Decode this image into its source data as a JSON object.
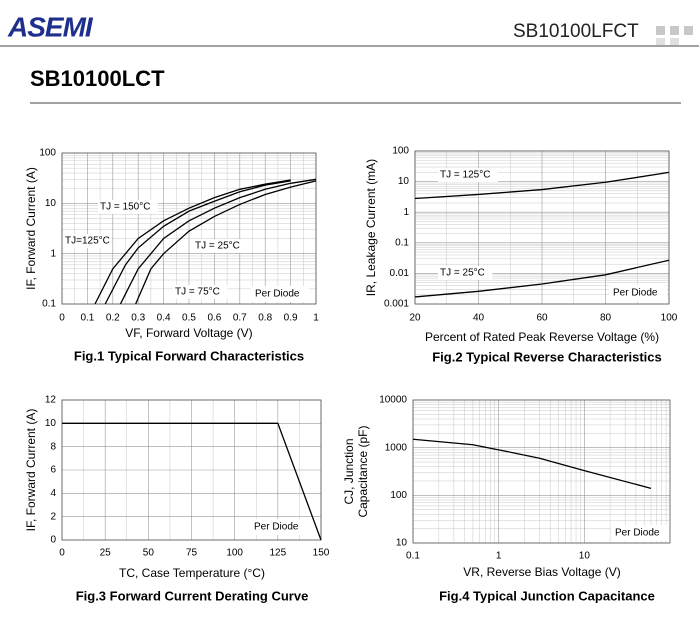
{
  "header": {
    "logo": "ASEMI",
    "part_code": "SB10100LFCT",
    "title": "SB10100LCT"
  },
  "chart_data": [
    {
      "type": "line",
      "caption": "Fig.1 Typical Forward Characteristics",
      "xlabel": "VF, Forward Voltage (V)",
      "ylabel": "IF, Forward Current (A)",
      "xlim": [
        0,
        1
      ],
      "xticks": [
        0,
        0.1,
        0.2,
        0.3,
        0.4,
        0.5,
        0.6,
        0.7,
        0.8,
        0.9,
        1
      ],
      "ylim": [
        0.1,
        100
      ],
      "yticks": [
        0.1,
        1,
        10,
        100
      ],
      "ylog": true,
      "grid": true,
      "note": "Per Diode",
      "series": [
        {
          "name": "TJ = 150°C",
          "color": "#000000",
          "x": [
            0.13,
            0.2,
            0.3,
            0.4,
            0.5,
            0.6,
            0.7,
            0.8,
            0.9
          ],
          "values": [
            0.1,
            0.5,
            2,
            4.5,
            8,
            13,
            19,
            24,
            29
          ]
        },
        {
          "name": "TJ=125°C",
          "color": "#000000",
          "x": [
            0.17,
            0.25,
            0.3,
            0.4,
            0.5,
            0.6,
            0.7,
            0.8,
            0.9
          ],
          "values": [
            0.1,
            0.6,
            1.3,
            3.5,
            7,
            11,
            17,
            23,
            28
          ]
        },
        {
          "name": "TJ = 25°C",
          "color": "#000000",
          "x": [
            0.29,
            0.35,
            0.4,
            0.5,
            0.6,
            0.7,
            0.8,
            0.9,
            1
          ],
          "values": [
            0.1,
            0.5,
            1,
            2.8,
            5.5,
            9.5,
            15,
            21,
            28
          ]
        },
        {
          "name": "TJ = 75°C",
          "color": "#000000",
          "x": [
            0.23,
            0.3,
            0.4,
            0.5,
            0.6,
            0.7,
            0.8,
            0.9,
            1
          ],
          "values": [
            0.1,
            0.5,
            2,
            4.5,
            8,
            13,
            19,
            25,
            30
          ]
        }
      ]
    },
    {
      "type": "line",
      "caption": "Fig.2 Typical Reverse Characteristics",
      "xlabel": "Percent of Rated Peak Reverse Voltage (%)",
      "ylabel": "IR, Leakage Current (mA)",
      "xlim": [
        20,
        100
      ],
      "xticks": [
        20,
        40,
        60,
        80,
        100
      ],
      "ylim": [
        0.001,
        100
      ],
      "yticks": [
        0.001,
        0.01,
        0.1,
        1,
        10,
        100
      ],
      "ylog": true,
      "grid": true,
      "note": "Per Diode",
      "series": [
        {
          "name": "TJ = 125°C",
          "color": "#000000",
          "x": [
            20,
            40,
            60,
            80,
            100
          ],
          "values": [
            2.8,
            3.8,
            5.5,
            9.5,
            20
          ]
        },
        {
          "name": "TJ = 25°C",
          "color": "#000000",
          "x": [
            20,
            40,
            60,
            80,
            100
          ],
          "values": [
            0.0017,
            0.0026,
            0.0045,
            0.009,
            0.027
          ]
        }
      ]
    },
    {
      "type": "line",
      "caption": "Fig.3 Forward Current Derating Curve",
      "xlabel": "TC, Case Temperature  (°C)",
      "ylabel": "IF, Forward Current (A)",
      "xlim": [
        0,
        150
      ],
      "xticks": [
        0,
        25,
        50,
        75,
        100,
        125,
        150
      ],
      "ylim": [
        0,
        12
      ],
      "yticks": [
        0,
        2,
        4,
        6,
        8,
        10,
        12
      ],
      "grid": true,
      "note": "Per Diode",
      "series": [
        {
          "color": "#000000",
          "x": [
            0,
            125,
            150
          ],
          "values": [
            10,
            10,
            0
          ]
        }
      ]
    },
    {
      "type": "line",
      "caption": "Fig.4 Typical Junction Capacitance",
      "xlabel": "VR, Reverse Bias Voltage (V)",
      "ylabel": [
        "CJ, Junction",
        "Capacitance (pF)"
      ],
      "xlim": [
        0.1,
        100
      ],
      "xticks": [
        0.1,
        1,
        10
      ],
      "xlog": true,
      "ylim": [
        10,
        10000
      ],
      "yticks": [
        10,
        100,
        1000,
        10000
      ],
      "ylog": true,
      "grid": true,
      "note": "Per Diode",
      "series": [
        {
          "color": "#000000",
          "x": [
            0.1,
            0.5,
            1,
            3,
            10,
            60
          ],
          "values": [
            1500,
            1150,
            900,
            600,
            330,
            140
          ]
        }
      ]
    }
  ]
}
